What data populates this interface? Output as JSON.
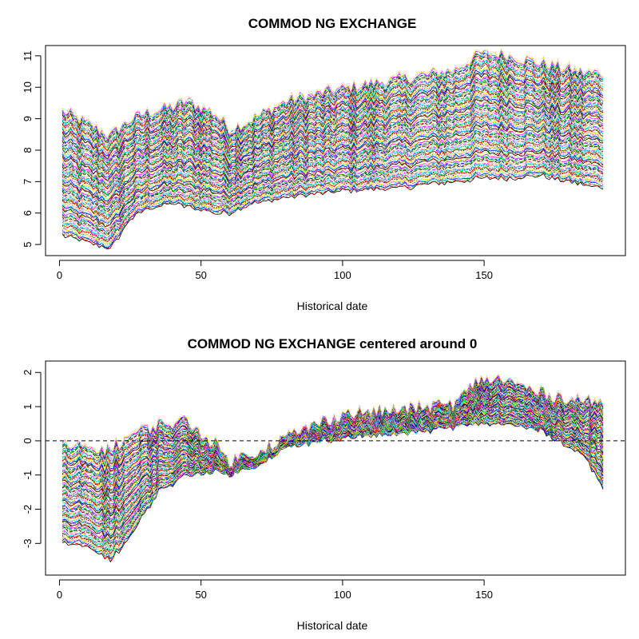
{
  "palette": [
    "#000000",
    "#ff0000",
    "#00cd00",
    "#0000ff",
    "#00ffff",
    "#ff00ff",
    "#ffff00",
    "#bebebe"
  ],
  "chart_data": [
    {
      "type": "line",
      "title": "COMMOD NG EXCHANGE",
      "xlabel": "Historical date",
      "ylabel": "",
      "xlim": [
        1,
        192
      ],
      "ylim": [
        4.85,
        11.2
      ],
      "x_ticks": [
        0,
        50,
        100,
        150
      ],
      "y_ticks": [
        5,
        6,
        7,
        8,
        9,
        10,
        11
      ],
      "grid": false,
      "legend": "none",
      "series_count": 120,
      "series_spread": {
        "x": [
          1,
          18,
          25,
          30,
          40,
          45,
          55,
          60,
          68,
          80,
          100,
          120,
          140,
          148,
          157,
          170,
          185,
          192
        ],
        "low": [
          5.3,
          4.85,
          5.8,
          6.1,
          6.3,
          6.2,
          6.0,
          6.0,
          6.3,
          6.5,
          6.7,
          6.8,
          7.0,
          7.1,
          7.1,
          7.2,
          6.9,
          6.8
        ],
        "high": [
          9.3,
          8.5,
          9.0,
          9.2,
          9.4,
          9.6,
          9.2,
          8.7,
          9.0,
          9.6,
          10.0,
          10.3,
          10.6,
          11.1,
          11.1,
          10.8,
          10.5,
          10.5
        ]
      }
    },
    {
      "type": "line",
      "title": "COMMOD NG EXCHANGE centered around 0",
      "xlabel": "Historical date",
      "ylabel": "",
      "xlim": [
        1,
        192
      ],
      "ylim": [
        -3.6,
        2.1
      ],
      "x_ticks": [
        0,
        50,
        100,
        150
      ],
      "y_ticks": [
        -3,
        -2,
        -1,
        0,
        1,
        2
      ],
      "grid": false,
      "legend": "none",
      "reference_line": {
        "y": 0,
        "style": "dashed"
      },
      "series_count": 120,
      "series_spread": {
        "x": [
          1,
          10,
          18,
          25,
          35,
          45,
          55,
          60,
          70,
          80,
          100,
          120,
          140,
          148,
          157,
          170,
          185,
          192
        ],
        "low": [
          -3.0,
          -3.1,
          -3.5,
          -2.8,
          -1.5,
          -1.0,
          -0.9,
          -1.0,
          -0.7,
          -0.2,
          0.1,
          0.2,
          0.4,
          0.5,
          0.5,
          0.3,
          -0.4,
          -1.4
        ],
        "high": [
          -0.1,
          -0.2,
          -0.2,
          0.2,
          0.5,
          0.6,
          -0.1,
          -0.6,
          -0.3,
          0.1,
          0.8,
          0.9,
          1.1,
          1.8,
          1.8,
          1.4,
          1.2,
          1.1
        ]
      }
    }
  ]
}
